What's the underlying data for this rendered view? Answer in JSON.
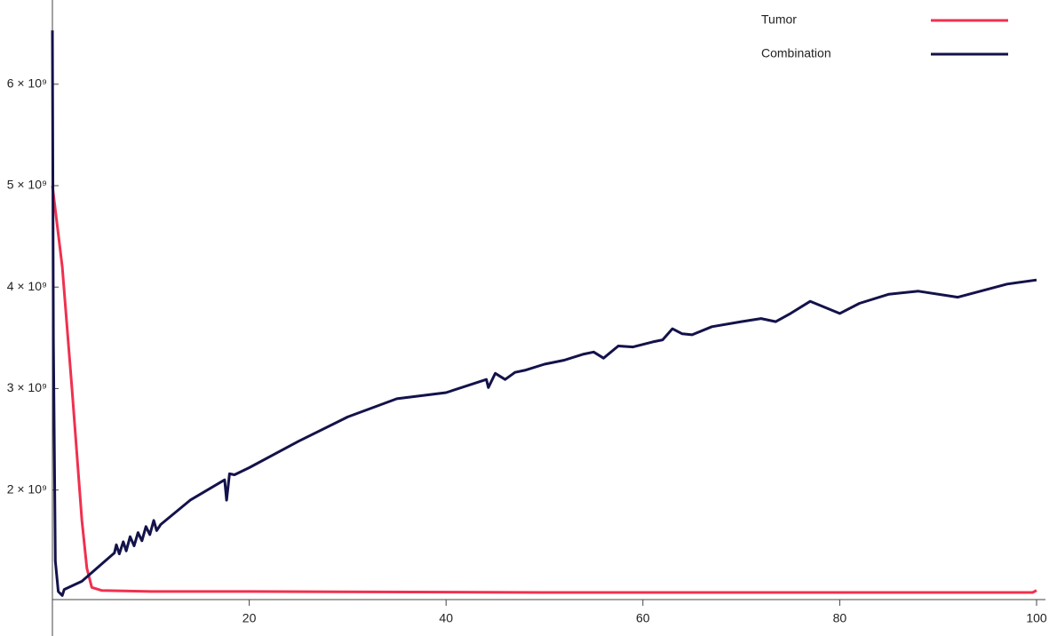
{
  "chart_data": {
    "type": "line",
    "xlim": [
      0,
      100
    ],
    "xticks": [
      20,
      40,
      60,
      80,
      100
    ],
    "ylim": [
      920000000,
      6830000000
    ],
    "yticks": [
      {
        "value": 2000000000,
        "label": "2 × 10⁹"
      },
      {
        "value": 3000000000,
        "label": "3 × 10⁹"
      },
      {
        "value": 4000000000,
        "label": "4 × 10⁹"
      },
      {
        "value": 5000000000,
        "label": "5 × 10⁹"
      },
      {
        "value": 6000000000,
        "label": "6 × 10⁹"
      }
    ],
    "legend": "top-right",
    "series": [
      {
        "name": "Tumor",
        "color": "#f0304f",
        "x": [
          0,
          1,
          2,
          3,
          3.5,
          4,
          5,
          10,
          20,
          50,
          99.6,
          100
        ],
        "values": [
          5000000000,
          4200000000,
          2980000000,
          1700000000,
          1230000000,
          1040000000,
          1010000000,
          1000000000,
          1000000000,
          990000000,
          990000000,
          1010000000
        ]
      },
      {
        "name": "Combination",
        "color": "#14124a",
        "x": [
          0,
          0.1,
          0.3,
          0.6,
          1,
          1.2,
          3,
          5,
          6.3,
          6.5,
          6.8,
          7.2,
          7.5,
          7.9,
          8.3,
          8.7,
          9.1,
          9.5,
          9.9,
          10.3,
          10.6,
          11,
          14,
          17.5,
          17.7,
          18,
          18.5,
          20,
          25,
          30,
          35,
          40,
          44.1,
          44.3,
          45,
          46,
          47,
          48,
          50,
          52,
          54,
          55,
          56,
          57.5,
          59,
          61,
          62,
          63,
          64,
          65,
          67,
          70,
          72,
          73.5,
          75,
          77,
          80,
          82,
          85,
          88,
          92,
          97,
          100
        ],
        "values": [
          6530000000,
          3500000000,
          1300000000,
          1000000000,
          960000000,
          1020000000,
          1100000000,
          1270000000,
          1380000000,
          1460000000,
          1370000000,
          1490000000,
          1400000000,
          1540000000,
          1450000000,
          1580000000,
          1500000000,
          1640000000,
          1560000000,
          1700000000,
          1600000000,
          1660000000,
          1900000000,
          2100000000,
          1900000000,
          2160000000,
          2150000000,
          2220000000,
          2480000000,
          2720000000,
          2900000000,
          2960000000,
          3090000000,
          3010000000,
          3150000000,
          3090000000,
          3160000000,
          3180000000,
          3240000000,
          3280000000,
          3340000000,
          3360000000,
          3300000000,
          3420000000,
          3410000000,
          3460000000,
          3480000000,
          3590000000,
          3540000000,
          3530000000,
          3610000000,
          3660000000,
          3690000000,
          3660000000,
          3740000000,
          3860000000,
          3740000000,
          3840000000,
          3930000000,
          3960000000,
          3900000000,
          4030000000,
          4070000000
        ]
      }
    ]
  }
}
